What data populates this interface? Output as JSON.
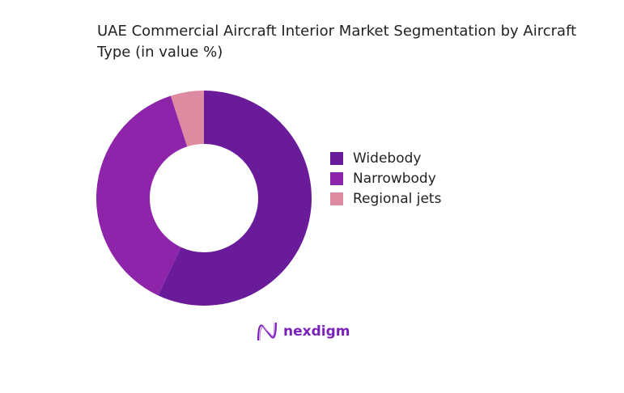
{
  "chart_data": {
    "type": "pie",
    "title": "UAE Commercial Aircraft Interior Market Segmentation by Aircraft Type (in value %)",
    "categories": [
      "Widebody",
      "Narrowbody",
      "Regional jets"
    ],
    "values": [
      57,
      38,
      5
    ],
    "unit": "%",
    "colors": [
      "#6a1b9a",
      "#8e24aa",
      "#de8aa0"
    ],
    "donut": true,
    "legend": "right"
  },
  "branding": {
    "logo_text": "nexdigm"
  }
}
